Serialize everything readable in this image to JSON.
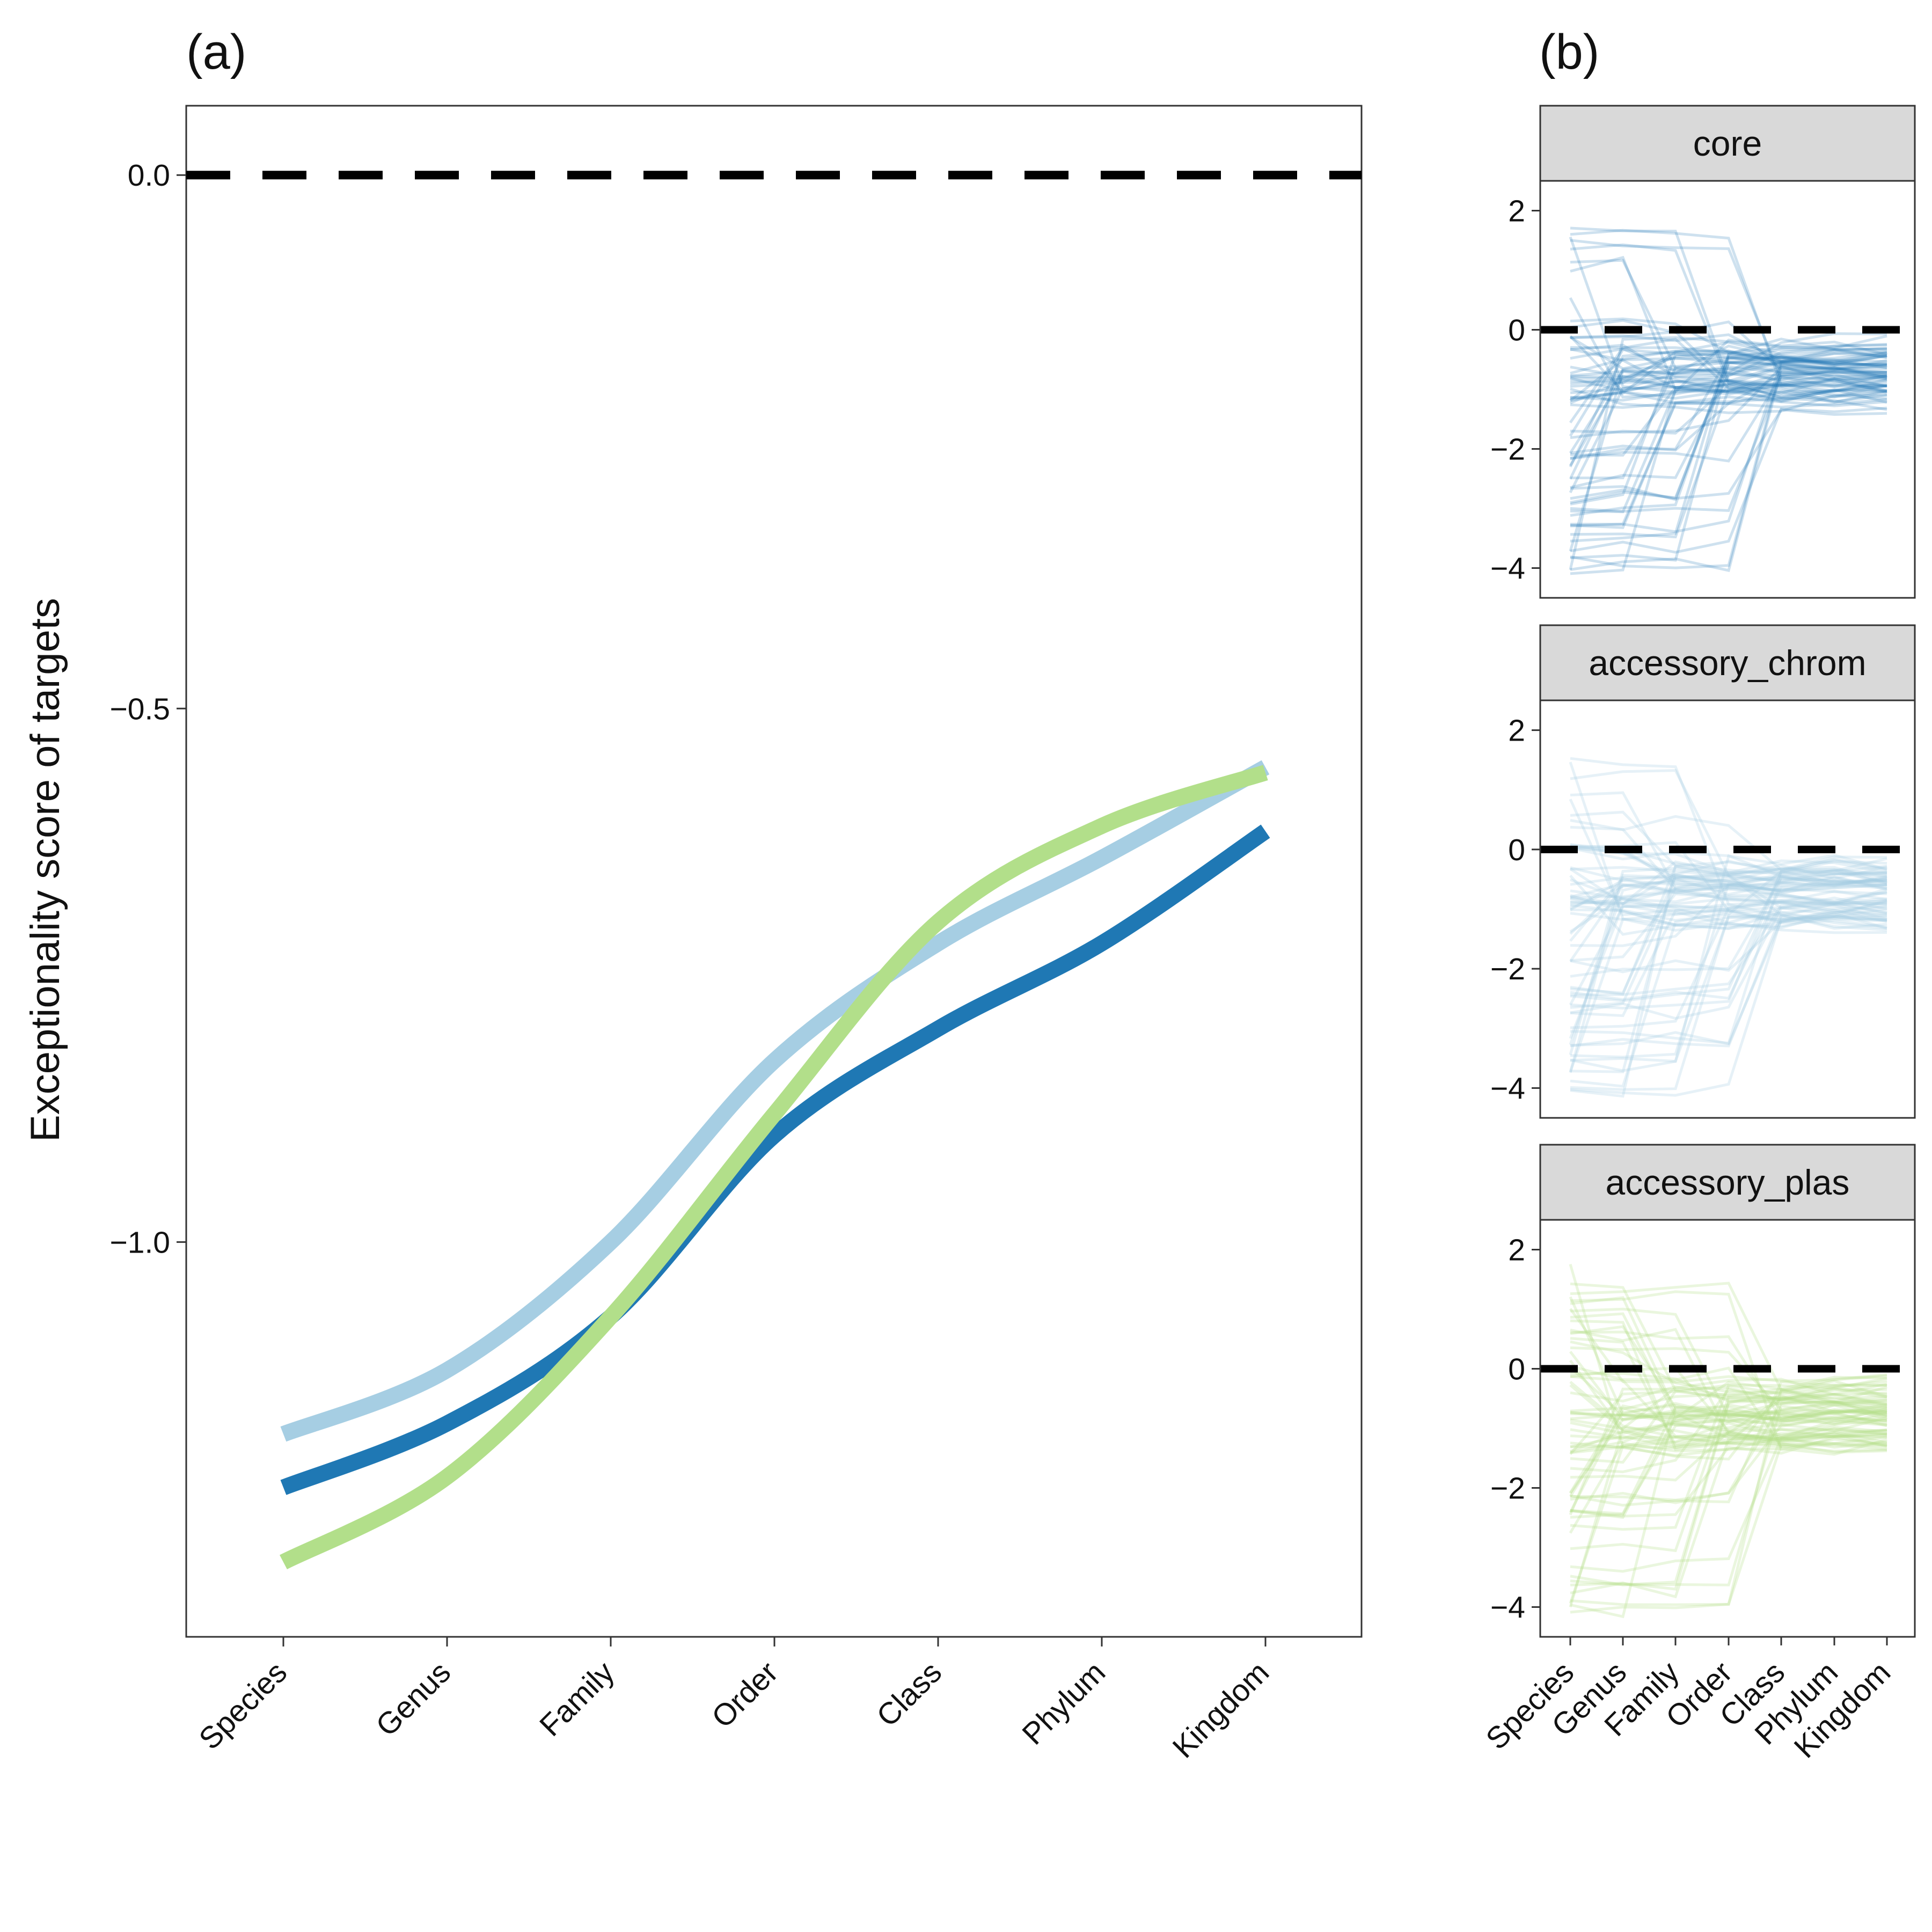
{
  "chart_data": [
    {
      "panel": "(a)",
      "type": "line",
      "ylabel": "Exceptionality score of targets",
      "xlabel": "",
      "categories": [
        "Species",
        "Genus",
        "Family",
        "Order",
        "Class",
        "Phylum",
        "Kingdom"
      ],
      "ylim": [
        -1.37,
        0.065
      ],
      "yticks": [
        "0.0",
        "−0.5",
        "−1.0"
      ],
      "ytick_values": [
        0.0,
        -0.5,
        -1.0
      ],
      "reference_line": 0.0,
      "series": [
        {
          "key": "accessory_chrom",
          "color": "#a6cee3",
          "values": [
            -1.18,
            -1.12,
            -1.0,
            -0.83,
            -0.72,
            -0.64,
            -0.555
          ]
        },
        {
          "key": "core",
          "color": "#1f78b4",
          "values": [
            -1.23,
            -1.17,
            -1.07,
            -0.9,
            -0.8,
            -0.72,
            -0.615
          ]
        },
        {
          "key": "accessory_plas",
          "color": "#b2df8a",
          "values": [
            -1.3,
            -1.22,
            -1.07,
            -0.88,
            -0.7,
            -0.61,
            -0.56
          ]
        }
      ]
    },
    {
      "panel": "(b)",
      "type": "line",
      "facets": [
        "core",
        "accessory_chrom",
        "accessory_plas"
      ],
      "categories": [
        "Species",
        "Genus",
        "Family",
        "Order",
        "Class",
        "Phylum",
        "Kingdom"
      ],
      "ylim": [
        -4.5,
        2.5
      ],
      "yticks": [
        "2",
        "0",
        "−2",
        "−4"
      ],
      "ytick_values": [
        2,
        0,
        -2,
        -4
      ],
      "reference_line": 0,
      "facet_colors": [
        "#1f78b4",
        "#a6cee3",
        "#b2df8a"
      ],
      "note": "many individual target trajectories (approximate)"
    }
  ]
}
